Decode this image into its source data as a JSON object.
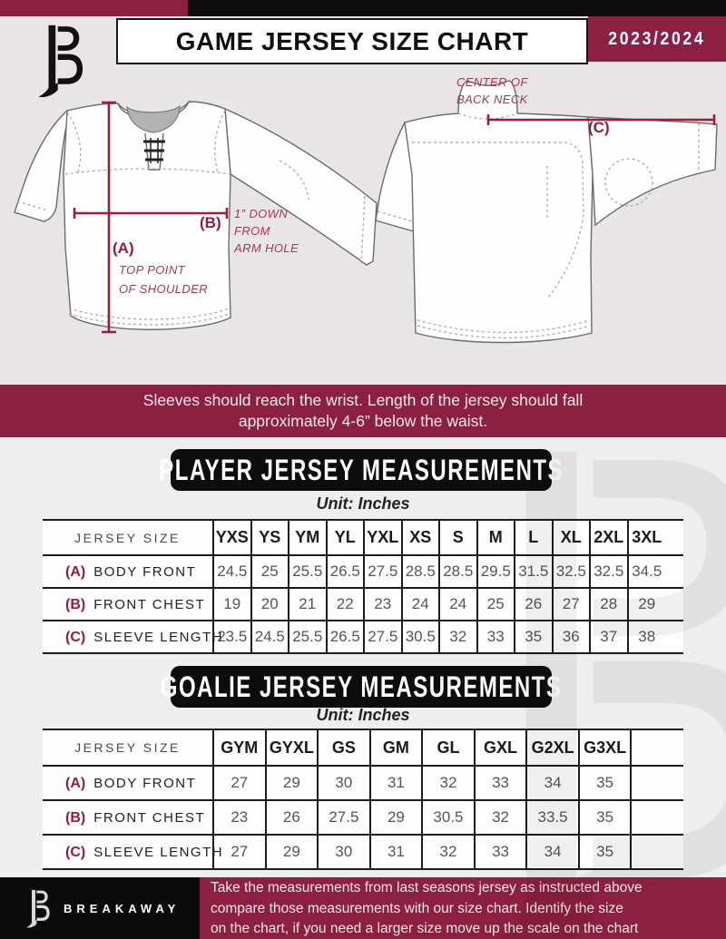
{
  "colors": {
    "maroon": "#8c2042",
    "black": "#0d0d0d",
    "measure_red": "#9e1c38"
  },
  "header": {
    "title": "GAME JERSEY SIZE CHART",
    "season": "2023/2024"
  },
  "diagram": {
    "front": {
      "label_a": "(A)",
      "note_a1": "TOP POINT",
      "note_a2": "OF SHOULDER",
      "label_b": "(B)",
      "note_b1": "1” DOWN",
      "note_b2": "FROM",
      "note_b3": "ARM HOLE"
    },
    "back": {
      "note_c1": "CENTER OF",
      "note_c2": "BACK NECK",
      "label_c": "(C)"
    }
  },
  "banner": {
    "line1": "Sleeves should reach the wrist. Length of the jersey should fall",
    "line2": "approximately 4-6” below the waist."
  },
  "player_table": {
    "section_title": "PLAYER JERSEY MEASUREMENTS",
    "unit": "Unit: Inches",
    "corner_label": "JERSEY SIZE",
    "sizes": [
      "YXS",
      "YS",
      "YM",
      "YL",
      "YXL",
      "XS",
      "S",
      "M",
      "L",
      "XL",
      "2XL",
      "3XL"
    ],
    "rows": [
      {
        "key": "(A)",
        "label": "BODY FRONT",
        "values": [
          "24.5",
          "25",
          "25.5",
          "26.5",
          "27.5",
          "28.5",
          "28.5",
          "29.5",
          "31.5",
          "32.5",
          "32.5",
          "34.5"
        ]
      },
      {
        "key": "(B)",
        "label": "FRONT CHEST",
        "values": [
          "19",
          "20",
          "21",
          "22",
          "23",
          "24",
          "24",
          "25",
          "26",
          "27",
          "28",
          "29"
        ]
      },
      {
        "key": "(C)",
        "label": "SLEEVE LENGTH",
        "values": [
          "23.5",
          "24.5",
          "25.5",
          "26.5",
          "27.5",
          "30.5",
          "32",
          "33",
          "35",
          "36",
          "37",
          "38"
        ]
      }
    ]
  },
  "goalie_table": {
    "section_title": "GOALIE JERSEY MEASUREMENTS",
    "unit": "Unit: Inches",
    "corner_label": "JERSEY SIZE",
    "sizes": [
      "GYM",
      "GYXL",
      "GS",
      "GM",
      "GL",
      "GXL",
      "G2XL",
      "G3XL",
      ""
    ],
    "rows": [
      {
        "key": "(A)",
        "label": "BODY FRONT",
        "values": [
          "27",
          "29",
          "30",
          "31",
          "32",
          "33",
          "34",
          "35",
          ""
        ]
      },
      {
        "key": "(B)",
        "label": "FRONT CHEST",
        "values": [
          "23",
          "26",
          "27.5",
          "29",
          "30.5",
          "32",
          "33.5",
          "35",
          ""
        ]
      },
      {
        "key": "(C)",
        "label": "SLEEVE LENGTH",
        "values": [
          "27",
          "29",
          "30",
          "31",
          "32",
          "33",
          "34",
          "35",
          ""
        ]
      }
    ]
  },
  "footer": {
    "brand": "BREAKAWAY",
    "line1": "Take the measurements from last seasons jersey as instructed above",
    "line2": "compare those measurements  with our size chart. Identify the size",
    "line3": "on the chart, if you need a larger size move up the scale on the chart"
  }
}
